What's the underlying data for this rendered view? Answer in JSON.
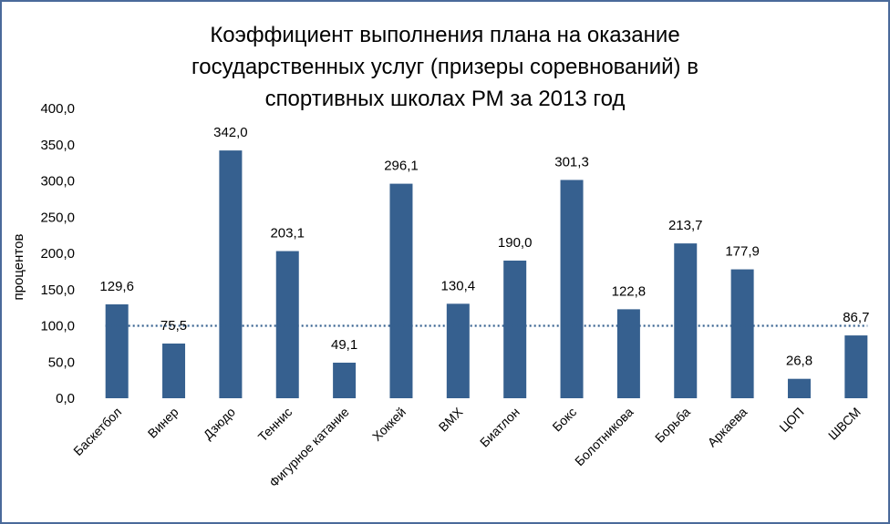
{
  "chart_data": {
    "type": "bar",
    "title_lines": [
      "Коэффициент выполнения плана на оказание",
      "государственных услуг (призеры соревнований) в",
      "спортивных школах РМ за 2013 год"
    ],
    "ylabel": "процентов",
    "xlabel": "",
    "ylim": [
      0,
      400
    ],
    "yticks": [
      0,
      50,
      100,
      150,
      200,
      250,
      300,
      350,
      400
    ],
    "ytick_labels": [
      "0,0",
      "50,0",
      "100,0",
      "150,0",
      "200,0",
      "250,0",
      "300,0",
      "350,0",
      "400,0"
    ],
    "categories": [
      "Баскетбол",
      "Винер",
      "Дзюдо",
      "Теннис",
      "Фигурное катание",
      "Хоккей",
      "ВМХ",
      "Биатлон",
      "Бокс",
      "Болотникова",
      "Борьба",
      "Аркаева",
      "ЦОП",
      "ШВСМ"
    ],
    "values": [
      129.6,
      75.5,
      342.0,
      203.1,
      49.1,
      296.1,
      130.4,
      190.0,
      301.3,
      122.8,
      213.7,
      177.9,
      26.8,
      86.7
    ],
    "value_labels": [
      "129,6",
      "75,5",
      "342,0",
      "203,1",
      "49,1",
      "296,1",
      "130,4",
      "190,0",
      "301,3",
      "122,8",
      "213,7",
      "177,9",
      "26,8",
      "86,7"
    ],
    "reference_line": 100,
    "grid": false,
    "legend": "none",
    "colors": {
      "bar": "#36608f",
      "reference": "#36608f",
      "frame": "#4a6a9a"
    }
  }
}
